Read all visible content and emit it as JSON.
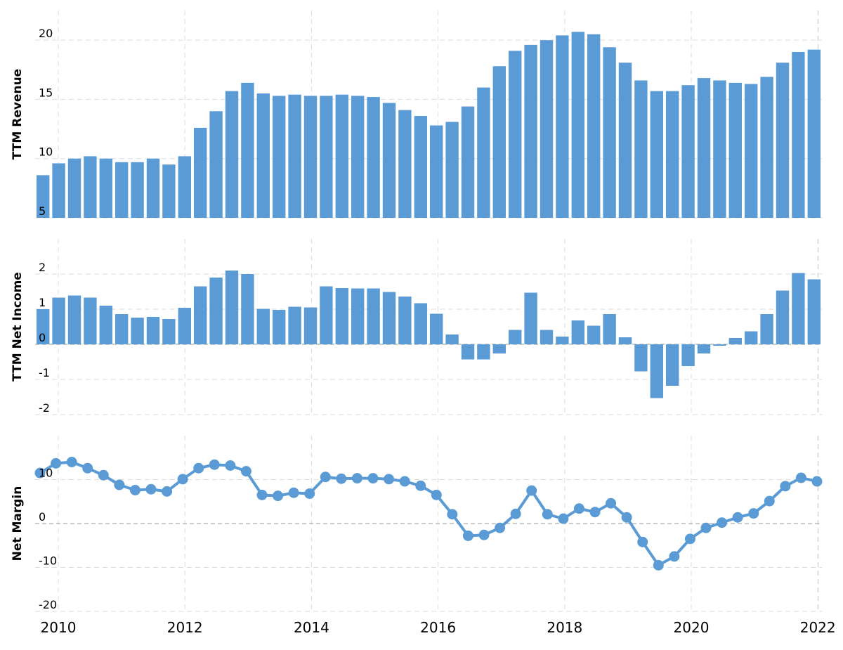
{
  "colors": {
    "series": "#5b9bd5",
    "grid": "#dddddd"
  },
  "chart_data": [
    {
      "type": "bar",
      "ylabel": "TTM Revenue",
      "ylim": [
        5,
        22.5
      ],
      "yticks": [
        5,
        10,
        15,
        20
      ],
      "grid": true,
      "values": [
        8.6,
        9.6,
        10.0,
        10.2,
        10.0,
        9.7,
        9.7,
        10.0,
        9.5,
        10.2,
        12.6,
        14.0,
        15.7,
        16.4,
        15.5,
        15.3,
        15.4,
        15.3,
        15.3,
        15.4,
        15.3,
        15.2,
        14.7,
        14.1,
        13.6,
        12.8,
        13.1,
        14.4,
        16.0,
        17.8,
        19.1,
        19.6,
        20.0,
        20.4,
        20.7,
        20.5,
        19.4,
        18.1,
        16.6,
        15.7,
        15.7,
        16.2,
        16.8,
        16.6,
        16.4,
        16.3,
        16.9,
        18.1,
        19.0,
        19.2
      ]
    },
    {
      "type": "bar",
      "ylabel": "TTM Net Income",
      "ylim": [
        -2,
        3
      ],
      "yticks": [
        -2,
        -1,
        0,
        1,
        2
      ],
      "grid": true,
      "values": [
        1.0,
        1.33,
        1.39,
        1.33,
        1.1,
        0.86,
        0.76,
        0.78,
        0.72,
        1.04,
        1.65,
        1.9,
        2.1,
        2.0,
        1.01,
        0.98,
        1.07,
        1.05,
        1.65,
        1.6,
        1.59,
        1.59,
        1.49,
        1.36,
        1.17,
        0.87,
        0.28,
        -0.43,
        -0.43,
        -0.26,
        0.41,
        1.47,
        0.41,
        0.22,
        0.68,
        0.53,
        0.86,
        0.2,
        -0.77,
        -1.53,
        -1.18,
        -0.62,
        -0.26,
        -0.04,
        0.18,
        0.37,
        0.86,
        1.53,
        2.03,
        1.85
      ]
    },
    {
      "type": "line",
      "ylabel": "Net Margin",
      "ylim": [
        -20,
        20
      ],
      "yticks": [
        -20,
        -10,
        0,
        10
      ],
      "grid": true,
      "markers": true,
      "values": [
        11.5,
        13.7,
        14.0,
        12.6,
        11.0,
        8.8,
        7.6,
        7.8,
        7.3,
        10.1,
        12.6,
        13.4,
        13.2,
        11.9,
        6.5,
        6.3,
        7.0,
        6.8,
        10.6,
        10.2,
        10.3,
        10.3,
        10.1,
        9.6,
        8.6,
        6.5,
        2.1,
        -2.8,
        -2.6,
        -1.0,
        2.2,
        7.5,
        2.1,
        1.1,
        3.4,
        2.6,
        4.6,
        1.4,
        -4.2,
        -9.5,
        -7.5,
        -3.5,
        -1.0,
        0.2,
        1.4,
        2.3,
        5.1,
        8.5,
        10.4,
        9.6
      ]
    }
  ],
  "x_axis": {
    "ticks": [
      "2010",
      "2012",
      "2014",
      "2016",
      "2018",
      "2020",
      "2022"
    ],
    "range": [
      2009.75,
      2022.12
    ]
  }
}
